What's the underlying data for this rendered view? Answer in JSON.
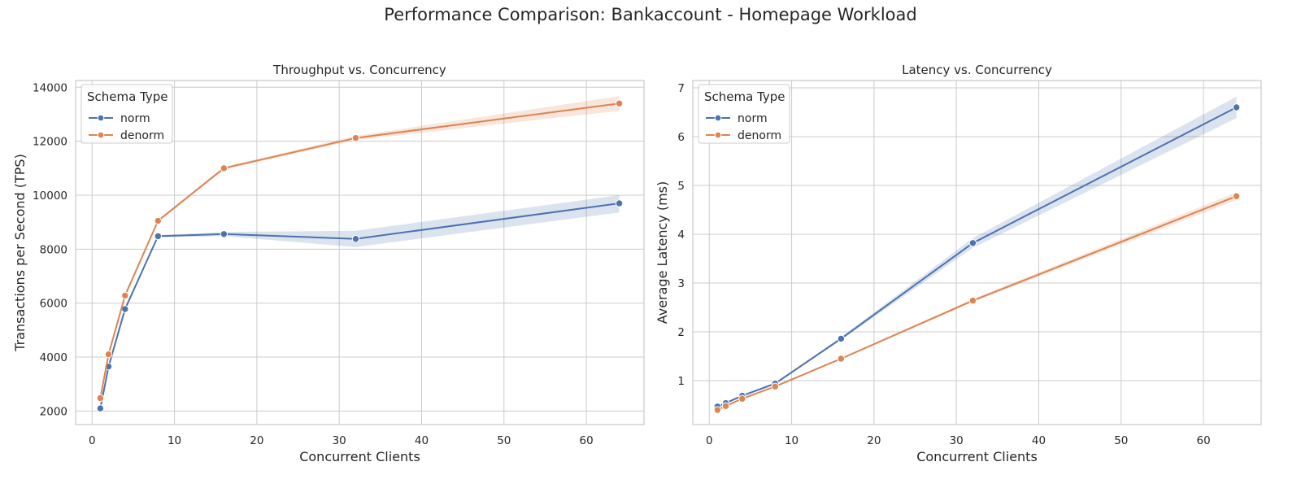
{
  "figure": {
    "suptitle": "Performance Comparison: Bankaccount - Homepage Workload"
  },
  "chart_data": [
    {
      "type": "line",
      "title": "Throughput vs. Concurrency",
      "xlabel": "Concurrent Clients",
      "ylabel": "Transactions per Second (TPS)",
      "xlim": [
        -2,
        67
      ],
      "ylim": [
        1500,
        14250
      ],
      "xticks": [
        0,
        10,
        20,
        30,
        40,
        50,
        60
      ],
      "yticks": [
        2000,
        4000,
        6000,
        8000,
        10000,
        12000,
        14000
      ],
      "grid": true,
      "legend": {
        "title": "Schema Type",
        "position": "top-left"
      },
      "x": [
        1,
        2,
        4,
        8,
        16,
        32,
        64
      ],
      "series": [
        {
          "name": "norm",
          "color": "#4c72b0",
          "values": [
            2100,
            3650,
            5780,
            8480,
            8560,
            8380,
            9700
          ],
          "lower": [
            2050,
            3600,
            5700,
            8440,
            8480,
            8080,
            9360
          ],
          "upper": [
            2150,
            3700,
            5860,
            8520,
            8640,
            8680,
            10000
          ]
        },
        {
          "name": "denorm",
          "color": "#dd8452",
          "values": [
            2480,
            4100,
            6280,
            9050,
            11000,
            12120,
            13400
          ],
          "lower": [
            2430,
            4050,
            6220,
            9000,
            10950,
            12040,
            13130
          ],
          "upper": [
            2530,
            4150,
            6340,
            9100,
            11050,
            12200,
            13670
          ]
        }
      ]
    },
    {
      "type": "line",
      "title": "Latency vs. Concurrency",
      "xlabel": "Concurrent Clients",
      "ylabel": "Average Latency (ms)",
      "xlim": [
        -2,
        67
      ],
      "ylim": [
        0.1,
        7.15
      ],
      "xticks": [
        0,
        10,
        20,
        30,
        40,
        50,
        60
      ],
      "yticks": [
        1,
        2,
        3,
        4,
        5,
        6,
        7
      ],
      "grid": true,
      "legend": {
        "title": "Schema Type",
        "position": "top-left"
      },
      "x": [
        1,
        2,
        4,
        8,
        16,
        32,
        64
      ],
      "series": [
        {
          "name": "norm",
          "color": "#4c72b0",
          "values": [
            0.47,
            0.54,
            0.69,
            0.94,
            1.86,
            3.82,
            6.6
          ],
          "lower": [
            0.45,
            0.52,
            0.67,
            0.92,
            1.83,
            3.72,
            6.38
          ],
          "upper": [
            0.49,
            0.56,
            0.71,
            0.96,
            1.89,
            3.92,
            6.82
          ]
        },
        {
          "name": "denorm",
          "color": "#dd8452",
          "values": [
            0.4,
            0.48,
            0.63,
            0.88,
            1.45,
            2.64,
            4.78
          ],
          "lower": [
            0.39,
            0.47,
            0.62,
            0.87,
            1.43,
            2.61,
            4.7
          ],
          "upper": [
            0.41,
            0.49,
            0.64,
            0.89,
            1.47,
            2.67,
            4.86
          ]
        }
      ]
    }
  ]
}
